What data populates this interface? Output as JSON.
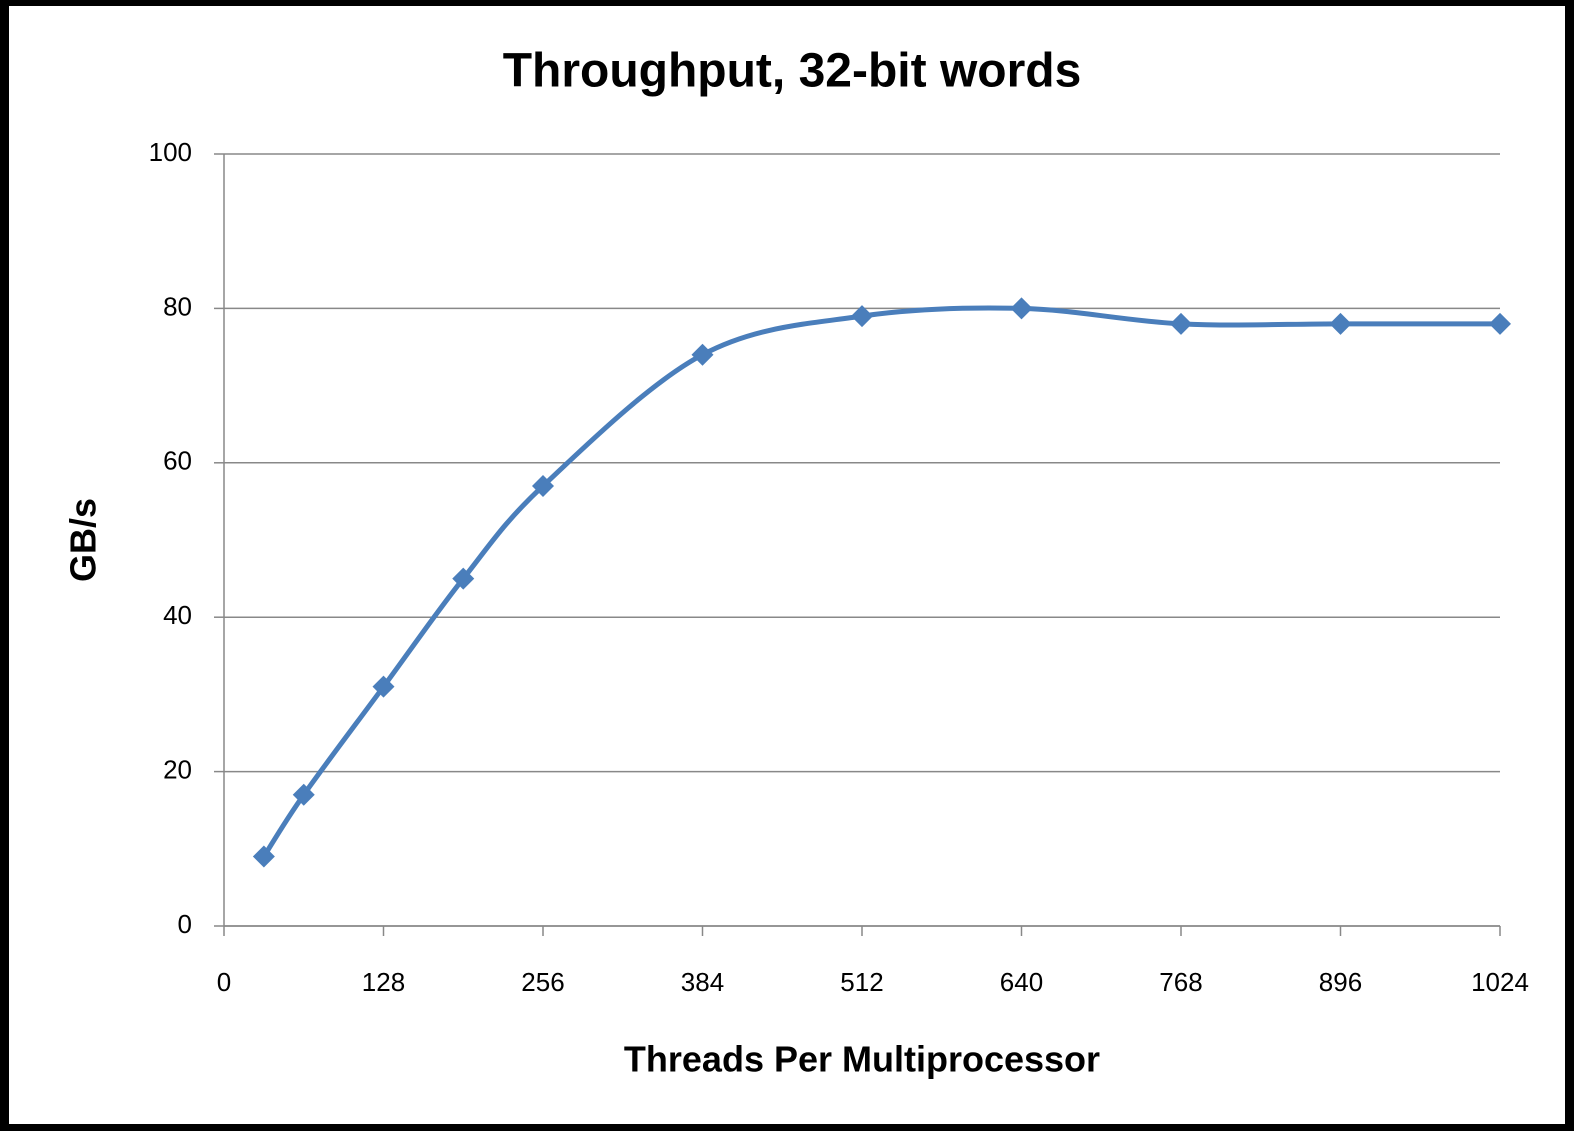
{
  "chart_data": {
    "type": "line",
    "title": "Throughput, 32-bit words",
    "x_label": "Threads Per Multiprocessor",
    "y_label": "GB/s",
    "x": [
      32,
      64,
      128,
      192,
      256,
      384,
      512,
      640,
      768,
      896,
      1024
    ],
    "values": [
      9,
      17,
      31,
      45,
      57,
      74,
      79,
      80,
      78,
      78,
      78
    ],
    "color": "#4a7ebb",
    "smooth": true,
    "marker": "diamond",
    "xlim": [
      0,
      1024
    ],
    "xticks": [
      0,
      128,
      256,
      384,
      512,
      640,
      768,
      896,
      1024
    ],
    "ylim": [
      0,
      100
    ],
    "yticks": [
      0,
      20,
      40,
      60,
      80,
      100
    ],
    "grid": true
  }
}
